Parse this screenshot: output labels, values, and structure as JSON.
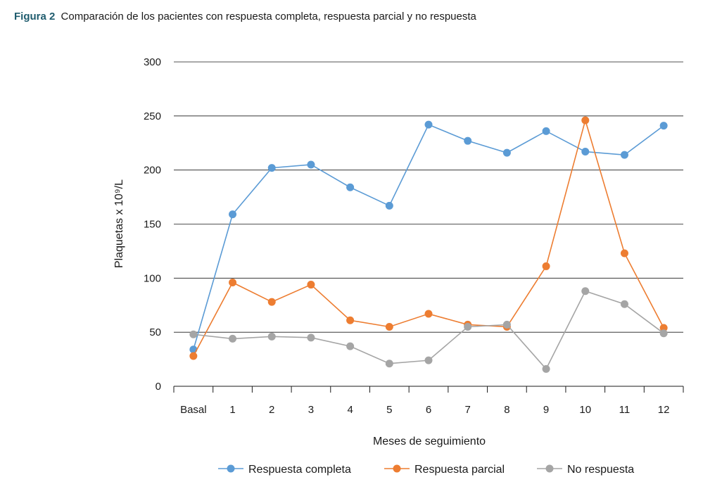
{
  "caption": {
    "figure_label": "Figura 2",
    "text": "Comparación de los pacientes con respuesta completa, respuesta parcial y no respuesta"
  },
  "chart_data": {
    "type": "line",
    "title": "",
    "xlabel": "Meses de seguimiento",
    "ylabel": "Plaquetas x 10⁹/L",
    "categories": [
      "Basal",
      "1",
      "2",
      "3",
      "4",
      "5",
      "6",
      "7",
      "8",
      "9",
      "10",
      "11",
      "12"
    ],
    "ylim": [
      0,
      300
    ],
    "yticks": [
      "0",
      "50",
      "100",
      "150",
      "200",
      "250",
      "300"
    ],
    "grid": true,
    "legend_position": "bottom",
    "series": [
      {
        "name": "Respuesta completa",
        "color": "#5b9bd5",
        "values": [
          34,
          159,
          202,
          205,
          184,
          167,
          242,
          227,
          216,
          236,
          217,
          214,
          241
        ]
      },
      {
        "name": "Respuesta parcial",
        "color": "#ed7d31",
        "values": [
          28,
          96,
          78,
          94,
          61,
          55,
          67,
          57,
          55,
          111,
          246,
          123,
          54
        ]
      },
      {
        "name": "No respuesta",
        "color": "#a5a5a5",
        "values": [
          48,
          44,
          46,
          45,
          37,
          21,
          24,
          55,
          57,
          16,
          88,
          76,
          49
        ]
      }
    ]
  }
}
